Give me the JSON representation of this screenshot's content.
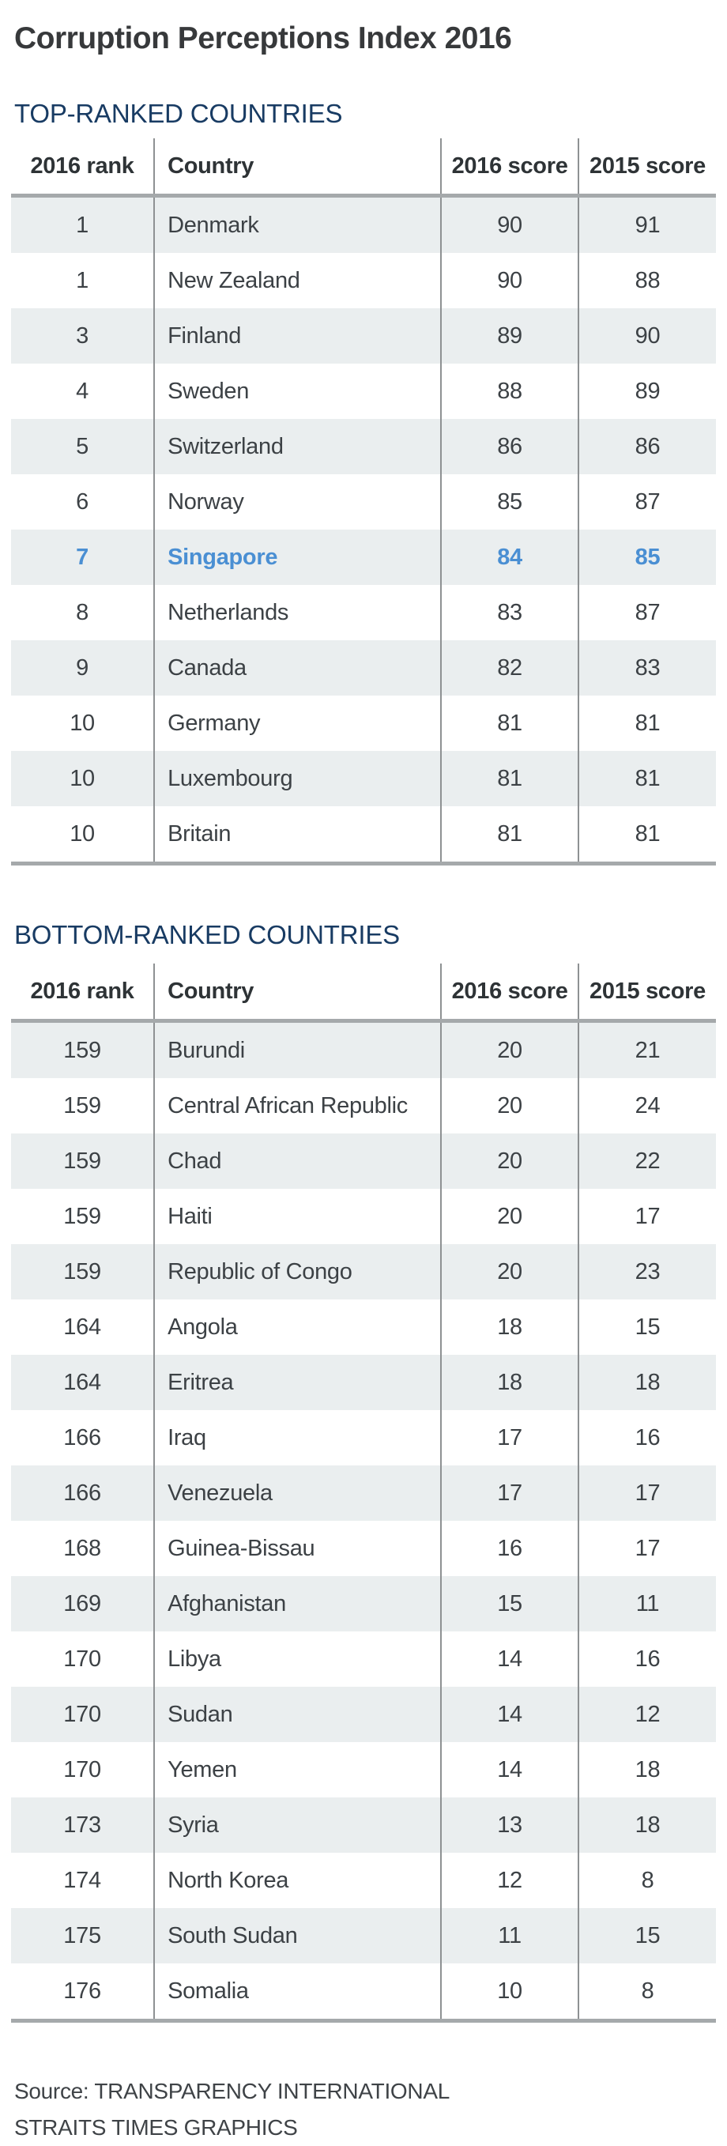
{
  "title": "Corruption Perceptions Index 2016",
  "colors": {
    "title_text": "#37393B",
    "heading_navy": "#183B63",
    "body_text": "#3C4145",
    "row_stripe": "#EAEEEF",
    "column_divider": "#8E9193",
    "rule_gray": "#A5A9AB",
    "highlight_blue": "#4A8FD3"
  },
  "chart_data": [
    {
      "type": "table",
      "title": "TOP-RANKED COUNTRIES",
      "columns": [
        "2016 rank",
        "Country",
        "2016 score",
        "2015 score"
      ],
      "rows": [
        [
          "1",
          "Denmark",
          "90",
          "91"
        ],
        [
          "1",
          "New Zealand",
          "90",
          "88"
        ],
        [
          "3",
          "Finland",
          "89",
          "90"
        ],
        [
          "4",
          "Sweden",
          "88",
          "89"
        ],
        [
          "5",
          "Switzerland",
          "86",
          "86"
        ],
        [
          "6",
          "Norway",
          "85",
          "87"
        ],
        [
          "7",
          "Singapore",
          "84",
          "85"
        ],
        [
          "8",
          "Netherlands",
          "83",
          "87"
        ],
        [
          "9",
          "Canada",
          "82",
          "83"
        ],
        [
          "10",
          "Germany",
          "81",
          "81"
        ],
        [
          "10",
          "Luxembourg",
          "81",
          "81"
        ],
        [
          "10",
          "Britain",
          "81",
          "81"
        ]
      ],
      "highlight": {
        "row": 6,
        "country": "Singapore",
        "color": "#4A8FD3"
      },
      "layout": {
        "stripe_odd_rows": true,
        "rank_align": "center",
        "country_align": "left",
        "score_align": "center"
      }
    },
    {
      "type": "table",
      "title": "BOTTOM-RANKED COUNTRIES",
      "columns": [
        "2016 rank",
        "Country",
        "2016 score",
        "2015 score"
      ],
      "rows": [
        [
          "159",
          "Burundi",
          "20",
          "21"
        ],
        [
          "159",
          "Central African Republic",
          "20",
          "24"
        ],
        [
          "159",
          "Chad",
          "20",
          "22"
        ],
        [
          "159",
          "Haiti",
          "20",
          "17"
        ],
        [
          "159",
          "Republic of Congo",
          "20",
          "23"
        ],
        [
          "164",
          "Angola",
          "18",
          "15"
        ],
        [
          "164",
          "Eritrea",
          "18",
          "18"
        ],
        [
          "166",
          "Iraq",
          "17",
          "16"
        ],
        [
          "166",
          "Venezuela",
          "17",
          "17"
        ],
        [
          "168",
          "Guinea-Bissau",
          "16",
          "17"
        ],
        [
          "169",
          "Afghanistan",
          "15",
          "11"
        ],
        [
          "170",
          "Libya",
          "14",
          "16"
        ],
        [
          "170",
          "Sudan",
          "14",
          "12"
        ],
        [
          "170",
          "Yemen",
          "14",
          "18"
        ],
        [
          "173",
          "Syria",
          "13",
          "18"
        ],
        [
          "174",
          "North Korea",
          "12",
          "8"
        ],
        [
          "175",
          "South Sudan",
          "11",
          "15"
        ],
        [
          "176",
          "Somalia",
          "10",
          "8"
        ]
      ],
      "highlight": null,
      "layout": {
        "stripe_odd_rows": true,
        "rank_align": "center",
        "country_align": "left",
        "score_align": "center"
      }
    }
  ],
  "source": [
    "Source: TRANSPARENCY INTERNATIONAL",
    "STRAITS TIMES GRAPHICS"
  ]
}
